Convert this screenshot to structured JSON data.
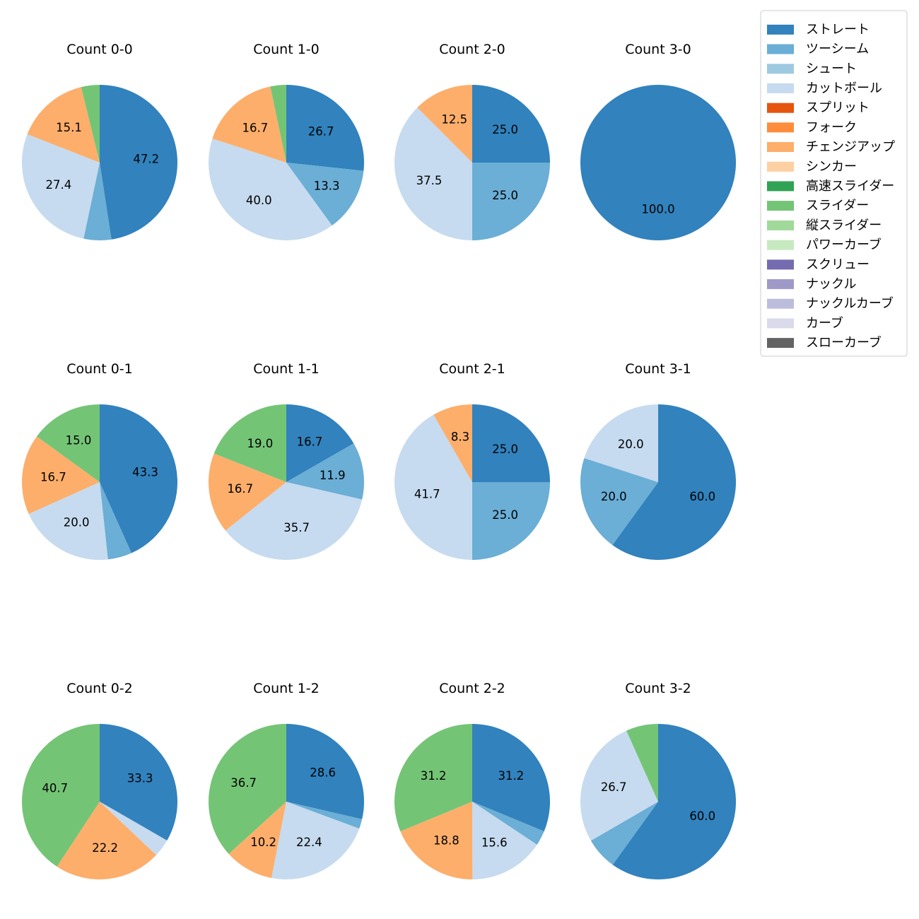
{
  "colors": {
    "ストレート": "#3182bd",
    "ツーシーム": "#6baed6",
    "シュート": "#9ecae1",
    "カットボール": "#c6dbef",
    "スプリット": "#e6550d",
    "フォーク": "#fd8d3c",
    "チェンジアップ": "#fdae6b",
    "シンカー": "#fdd0a2",
    "高速スライダー": "#31a354",
    "スライダー": "#74c476",
    "縦スライダー": "#a1d99b",
    "パワーカーブ": "#c7e9c0",
    "スクリュー": "#756bb1",
    "ナックル": "#9e9ac8",
    "ナックルカーブ": "#bcbddc",
    "カーブ": "#dadaeb",
    "スローカーブ": "#636363"
  },
  "chart_data": {
    "type": "pie",
    "legend": {
      "placement": "top-right",
      "entries": [
        "ストレート",
        "ツーシーム",
        "シュート",
        "カットボール",
        "スプリット",
        "フォーク",
        "チェンジアップ",
        "シンカー",
        "高速スライダー",
        "スライダー",
        "縦スライダー",
        "パワーカーブ",
        "スクリュー",
        "ナックル",
        "ナックルカーブ",
        "カーブ",
        "スローカーブ"
      ]
    },
    "pies": [
      {
        "title": "Count 0-0",
        "slices": [
          {
            "name": "ストレート",
            "value": 47.2,
            "label": "47.2"
          },
          {
            "name": "ツーシーム",
            "value": 5.7,
            "label": ""
          },
          {
            "name": "カットボール",
            "value": 27.4,
            "label": "27.4"
          },
          {
            "name": "チェンジアップ",
            "value": 15.1,
            "label": "15.1"
          },
          {
            "name": "スライダー",
            "value": 3.8,
            "label": ""
          }
        ]
      },
      {
        "title": "Count 1-0",
        "slices": [
          {
            "name": "ストレート",
            "value": 26.7,
            "label": "26.7"
          },
          {
            "name": "ツーシーム",
            "value": 13.3,
            "label": "13.3"
          },
          {
            "name": "カットボール",
            "value": 40.0,
            "label": "40.0"
          },
          {
            "name": "チェンジアップ",
            "value": 16.7,
            "label": "16.7"
          },
          {
            "name": "スライダー",
            "value": 3.3,
            "label": ""
          }
        ]
      },
      {
        "title": "Count 2-0",
        "slices": [
          {
            "name": "ストレート",
            "value": 25.0,
            "label": "25.0"
          },
          {
            "name": "ツーシーム",
            "value": 25.0,
            "label": "25.0"
          },
          {
            "name": "カットボール",
            "value": 37.5,
            "label": "37.5"
          },
          {
            "name": "チェンジアップ",
            "value": 12.5,
            "label": "12.5"
          }
        ]
      },
      {
        "title": "Count 3-0",
        "slices": [
          {
            "name": "ストレート",
            "value": 100.0,
            "label": "100.0"
          }
        ]
      },
      {
        "title": "Count 0-1",
        "slices": [
          {
            "name": "ストレート",
            "value": 43.3,
            "label": "43.3"
          },
          {
            "name": "ツーシーム",
            "value": 5.0,
            "label": ""
          },
          {
            "name": "カットボール",
            "value": 20.0,
            "label": "20.0"
          },
          {
            "name": "チェンジアップ",
            "value": 16.7,
            "label": "16.7"
          },
          {
            "name": "スライダー",
            "value": 15.0,
            "label": "15.0"
          }
        ]
      },
      {
        "title": "Count 1-1",
        "slices": [
          {
            "name": "ストレート",
            "value": 16.7,
            "label": "16.7"
          },
          {
            "name": "ツーシーム",
            "value": 11.9,
            "label": "11.9"
          },
          {
            "name": "カットボール",
            "value": 35.7,
            "label": "35.7"
          },
          {
            "name": "チェンジアップ",
            "value": 16.7,
            "label": "16.7"
          },
          {
            "name": "スライダー",
            "value": 19.0,
            "label": "19.0"
          }
        ]
      },
      {
        "title": "Count 2-1",
        "slices": [
          {
            "name": "ストレート",
            "value": 25.0,
            "label": "25.0"
          },
          {
            "name": "ツーシーム",
            "value": 25.0,
            "label": "25.0"
          },
          {
            "name": "カットボール",
            "value": 41.7,
            "label": "41.7"
          },
          {
            "name": "チェンジアップ",
            "value": 8.3,
            "label": "8.3"
          }
        ]
      },
      {
        "title": "Count 3-1",
        "slices": [
          {
            "name": "ストレート",
            "value": 60.0,
            "label": "60.0"
          },
          {
            "name": "ツーシーム",
            "value": 20.0,
            "label": "20.0"
          },
          {
            "name": "カットボール",
            "value": 20.0,
            "label": "20.0"
          }
        ]
      },
      {
        "title": "Count 0-2",
        "slices": [
          {
            "name": "ストレート",
            "value": 33.3,
            "label": "33.3"
          },
          {
            "name": "カットボール",
            "value": 3.7,
            "label": ""
          },
          {
            "name": "チェンジアップ",
            "value": 22.2,
            "label": "22.2"
          },
          {
            "name": "スライダー",
            "value": 40.7,
            "label": "40.7"
          }
        ]
      },
      {
        "title": "Count 1-2",
        "slices": [
          {
            "name": "ストレート",
            "value": 28.6,
            "label": "28.6"
          },
          {
            "name": "ツーシーム",
            "value": 2.0,
            "label": ""
          },
          {
            "name": "カットボール",
            "value": 22.4,
            "label": "22.4"
          },
          {
            "name": "チェンジアップ",
            "value": 10.2,
            "label": "10.2"
          },
          {
            "name": "スライダー",
            "value": 36.7,
            "label": "36.7"
          }
        ]
      },
      {
        "title": "Count 2-2",
        "slices": [
          {
            "name": "ストレート",
            "value": 31.2,
            "label": "31.2"
          },
          {
            "name": "ツーシーム",
            "value": 3.1,
            "label": ""
          },
          {
            "name": "カットボール",
            "value": 15.6,
            "label": "15.6"
          },
          {
            "name": "チェンジアップ",
            "value": 18.8,
            "label": "18.8"
          },
          {
            "name": "スライダー",
            "value": 31.2,
            "label": "31.2"
          }
        ]
      },
      {
        "title": "Count 3-2",
        "slices": [
          {
            "name": "ストレート",
            "value": 60.0,
            "label": "60.0"
          },
          {
            "name": "ツーシーム",
            "value": 6.7,
            "label": ""
          },
          {
            "name": "カットボール",
            "value": 26.7,
            "label": "26.7"
          },
          {
            "name": "スライダー",
            "value": 6.7,
            "label": ""
          }
        ]
      }
    ]
  }
}
